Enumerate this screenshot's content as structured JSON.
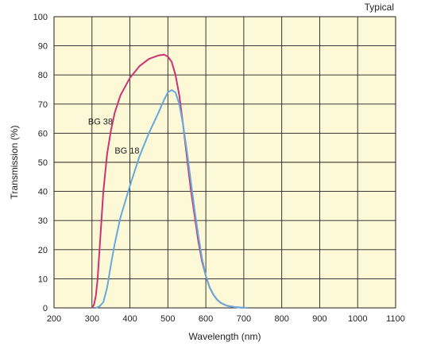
{
  "chart_data": {
    "type": "line",
    "title": "",
    "note": "Typical",
    "xlabel": "Wavelength (nm)",
    "ylabel": "Transmission (%)",
    "xlim": [
      200,
      1100
    ],
    "ylim": [
      0,
      100
    ],
    "x_ticks": [
      200,
      300,
      400,
      500,
      600,
      700,
      800,
      900,
      1000,
      1100
    ],
    "y_ticks": [
      0,
      10,
      20,
      30,
      40,
      50,
      60,
      70,
      80,
      90,
      100
    ],
    "grid": true,
    "background_color": "#fdf8d6",
    "grid_color": "#222222",
    "series": [
      {
        "name": "BG 38",
        "color": "#cc3377",
        "label_anchor": [
          355,
          63
        ],
        "points": [
          [
            300,
            0
          ],
          [
            305,
            1
          ],
          [
            310,
            4
          ],
          [
            315,
            10
          ],
          [
            320,
            20
          ],
          [
            325,
            30
          ],
          [
            330,
            40
          ],
          [
            340,
            53
          ],
          [
            350,
            61
          ],
          [
            360,
            67
          ],
          [
            375,
            73
          ],
          [
            400,
            79
          ],
          [
            425,
            83
          ],
          [
            450,
            85.5
          ],
          [
            475,
            86.7
          ],
          [
            490,
            87
          ],
          [
            500,
            86.3
          ],
          [
            510,
            84.5
          ],
          [
            520,
            80
          ],
          [
            530,
            73
          ],
          [
            540,
            63
          ],
          [
            550,
            52
          ],
          [
            560,
            41
          ],
          [
            570,
            32
          ],
          [
            580,
            23
          ],
          [
            590,
            16
          ],
          [
            600,
            11
          ],
          [
            610,
            7
          ],
          [
            620,
            4.5
          ],
          [
            630,
            2.8
          ],
          [
            640,
            1.7
          ],
          [
            650,
            1
          ],
          [
            660,
            0.6
          ],
          [
            675,
            0.3
          ],
          [
            700,
            0
          ]
        ]
      },
      {
        "name": "BG 18",
        "color": "#66aadd",
        "label_anchor": [
          425,
          53
        ],
        "points": [
          [
            310,
            0
          ],
          [
            320,
            0.5
          ],
          [
            330,
            2
          ],
          [
            340,
            7
          ],
          [
            350,
            15
          ],
          [
            360,
            22
          ],
          [
            375,
            31
          ],
          [
            400,
            42
          ],
          [
            425,
            52
          ],
          [
            450,
            60
          ],
          [
            475,
            67
          ],
          [
            490,
            71.5
          ],
          [
            500,
            74
          ],
          [
            510,
            74.8
          ],
          [
            520,
            74
          ],
          [
            530,
            70
          ],
          [
            540,
            63
          ],
          [
            550,
            54
          ],
          [
            560,
            44
          ],
          [
            570,
            34
          ],
          [
            580,
            25
          ],
          [
            590,
            17
          ],
          [
            600,
            11
          ],
          [
            610,
            7
          ],
          [
            620,
            4.5
          ],
          [
            630,
            2.8
          ],
          [
            640,
            1.7
          ],
          [
            650,
            1
          ],
          [
            660,
            0.6
          ],
          [
            675,
            0.3
          ],
          [
            690,
            0.1
          ],
          [
            710,
            0
          ]
        ]
      }
    ]
  }
}
